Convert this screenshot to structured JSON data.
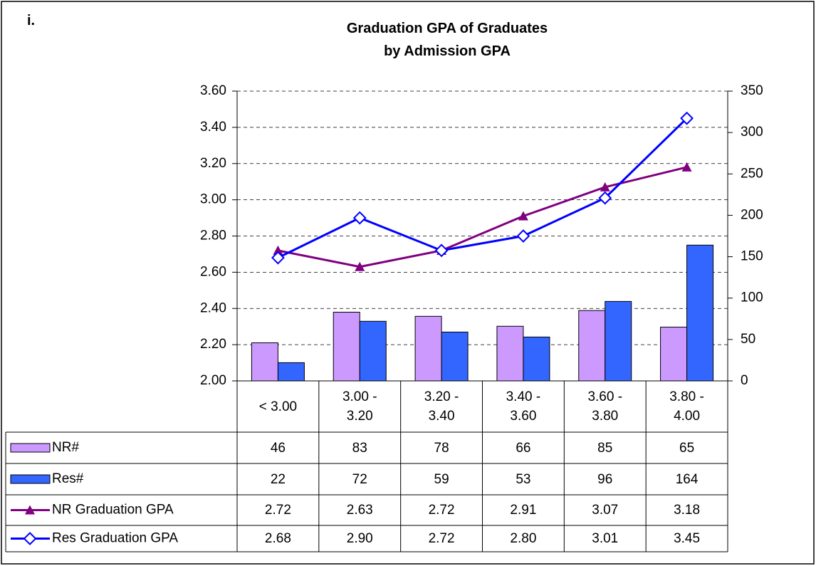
{
  "panel_label": "i.",
  "chart_data": {
    "type": "bar",
    "title": "Graduation GPA of Graduates\nby Admission GPA",
    "categories": [
      "< 3.00",
      "3.00 - 3.20",
      "3.20 - 3.40",
      "3.40 - 3.60",
      "3.60 - 3.80",
      "3.80 - 4.00"
    ],
    "series": [
      {
        "name": "NR#",
        "type": "bar",
        "axis": "y2",
        "color": "#cc99ff",
        "values": [
          46,
          83,
          78,
          66,
          85,
          65
        ]
      },
      {
        "name": "Res#",
        "type": "bar",
        "axis": "y2",
        "color": "#3366ff",
        "values": [
          22,
          72,
          59,
          53,
          96,
          164
        ]
      },
      {
        "name": "NR Graduation GPA",
        "type": "line",
        "marker": "triangle",
        "color": "#800080",
        "values": [
          2.72,
          2.63,
          2.72,
          2.91,
          3.07,
          3.18
        ],
        "value_labels": [
          "2.72",
          "2.63",
          "2.72",
          "2.91",
          "3.07",
          "3.18"
        ]
      },
      {
        "name": "Res Graduation GPA",
        "type": "line",
        "marker": "diamond",
        "color": "#0000ff",
        "values": [
          2.68,
          2.9,
          2.72,
          2.8,
          3.01,
          3.45
        ],
        "value_labels": [
          "2.68",
          "2.90",
          "2.72",
          "2.80",
          "3.01",
          "3.45"
        ]
      }
    ],
    "ylim": [
      2.0,
      3.6
    ],
    "yticks": [
      {
        "value": 2.0,
        "label": "2.00"
      },
      {
        "value": 2.2,
        "label": "2.20"
      },
      {
        "value": 2.4,
        "label": "2.40"
      },
      {
        "value": 2.6,
        "label": "2.60"
      },
      {
        "value": 2.8,
        "label": "2.80"
      },
      {
        "value": 3.0,
        "label": "3.00"
      },
      {
        "value": 3.2,
        "label": "3.20"
      },
      {
        "value": 3.4,
        "label": "3.40"
      },
      {
        "value": 3.6,
        "label": "3.60"
      }
    ],
    "y2lim": [
      0,
      350
    ],
    "y2ticks": [
      0,
      50,
      100,
      150,
      200,
      250,
      300,
      350
    ],
    "grid": true
  }
}
